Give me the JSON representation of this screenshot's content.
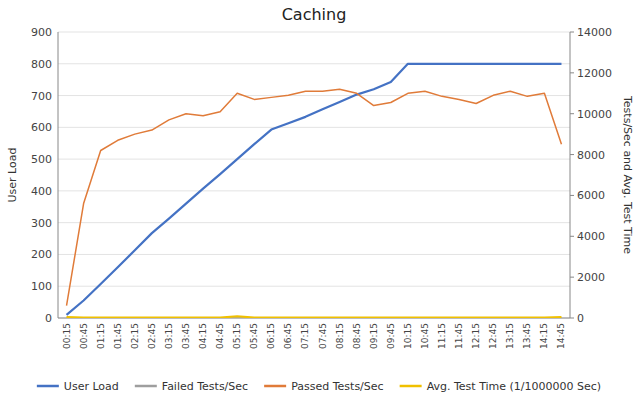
{
  "chart_data": {
    "type": "line",
    "title": "Caching",
    "ylabel": "User Load",
    "y2label": "Tests/Sec and Avg. Test Time",
    "categories": [
      "00:15",
      "00:45",
      "01:15",
      "01:45",
      "02:15",
      "02:45",
      "03:15",
      "03:45",
      "04:15",
      "04:45",
      "05:15",
      "05:45",
      "06:15",
      "06:45",
      "07:15",
      "07:45",
      "08:15",
      "08:45",
      "09:15",
      "09:45",
      "10:15",
      "10:45",
      "11:15",
      "11:45",
      "12:15",
      "12:45",
      "13:15",
      "13:45",
      "14:15",
      "14:45"
    ],
    "series": [
      {
        "name": "User Load",
        "color": "#4472C4",
        "values": [
          10,
          55,
          107,
          160,
          213,
          267,
          313,
          360,
          407,
          453,
          500,
          547,
          593,
          613,
          633,
          657,
          680,
          703,
          720,
          743,
          800,
          800,
          800,
          800,
          800,
          800,
          800,
          800,
          800,
          800
        ]
      },
      {
        "name": "Failed Tests/Sec",
        "color": "#9E9E9E",
        "values": [
          0,
          0,
          0,
          0,
          0,
          0,
          0,
          0,
          0,
          0,
          0,
          0,
          0,
          0,
          0,
          0,
          0,
          0,
          0,
          0,
          0,
          0,
          0,
          0,
          0,
          0,
          0,
          0,
          0,
          0
        ]
      },
      {
        "name": "Passed Tests/Sec",
        "color": "#E07B39",
        "axis": "y2",
        "values": [
          600,
          5600,
          8200,
          8700,
          9000,
          9200,
          9700,
          10000,
          9900,
          10100,
          11000,
          10700,
          10800,
          10900,
          11100,
          11100,
          11200,
          11000,
          10400,
          10550,
          11000,
          11100,
          10850,
          10700,
          10500,
          10900,
          11100,
          10850,
          11000,
          8500
        ]
      },
      {
        "name": "Avg. Test Time (1/1000000 Sec)",
        "color": "#F0C000",
        "axis": "y2",
        "values": [
          50,
          30,
          20,
          20,
          20,
          20,
          20,
          20,
          20,
          20,
          80,
          20,
          20,
          20,
          20,
          20,
          20,
          20,
          20,
          20,
          20,
          20,
          20,
          20,
          20,
          20,
          20,
          20,
          20,
          50
        ]
      }
    ],
    "ylim": [
      0,
      900
    ],
    "yticks": [
      0,
      100,
      200,
      300,
      400,
      500,
      600,
      700,
      800,
      900
    ],
    "y2lim": [
      0,
      14000
    ],
    "y2ticks": [
      0,
      2000,
      4000,
      6000,
      8000,
      10000,
      12000,
      14000
    ],
    "grid": true,
    "legend": "bottom"
  }
}
